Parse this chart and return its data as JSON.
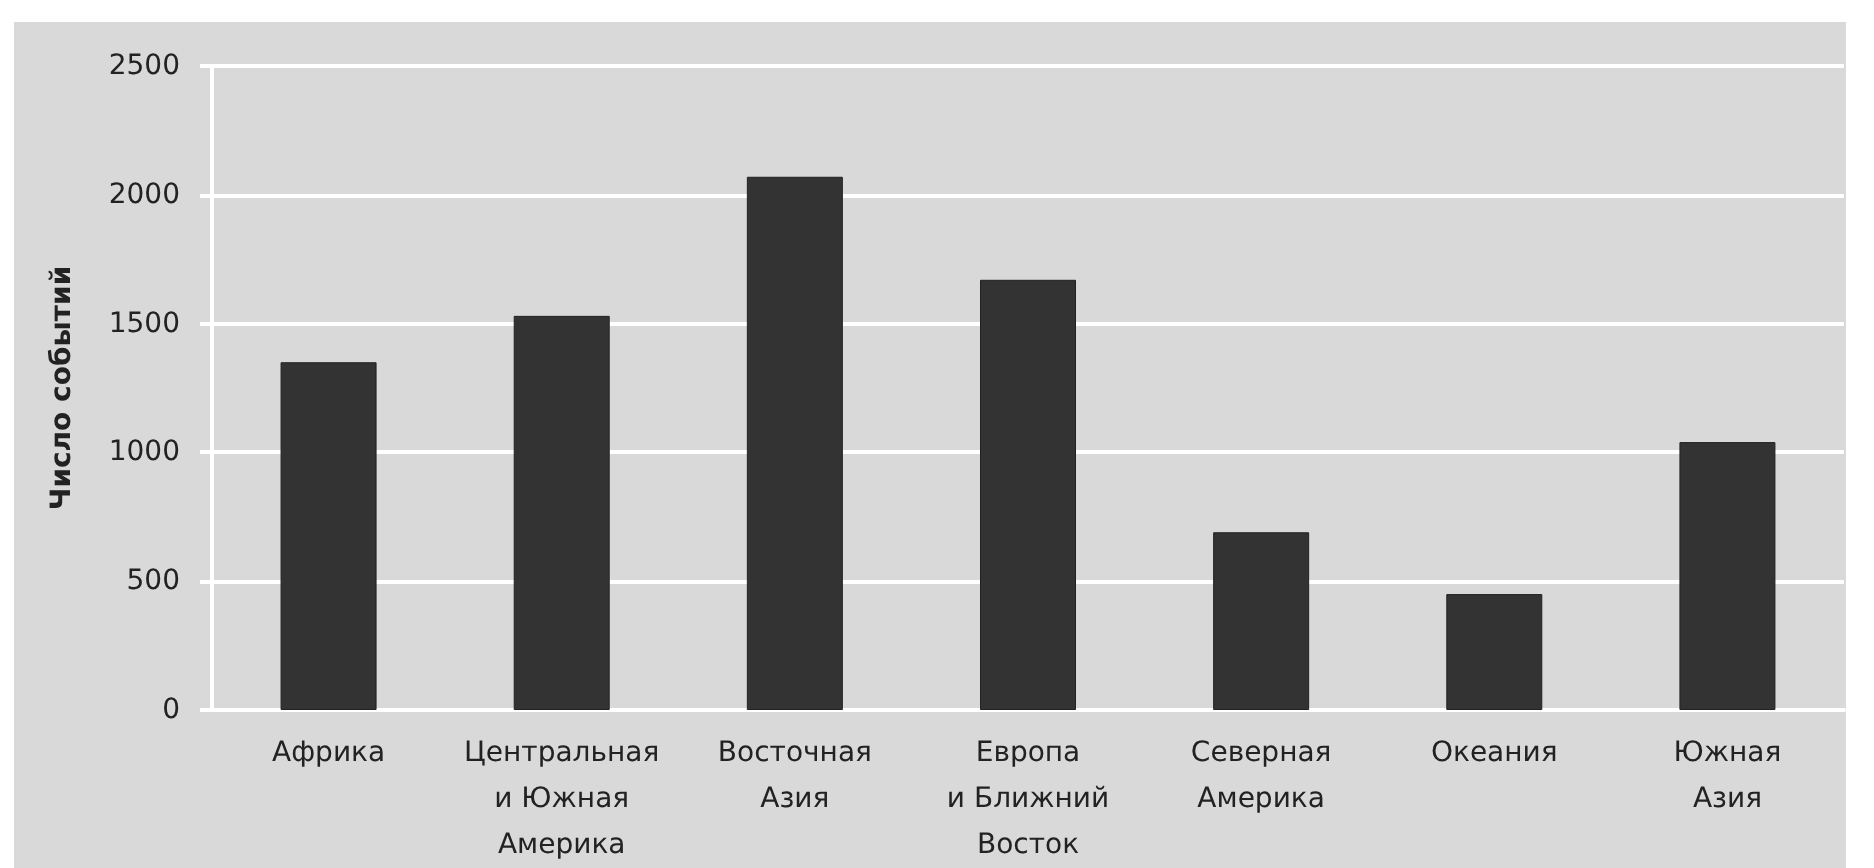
{
  "chart_data": {
    "type": "bar",
    "ylabel": "Число событий",
    "categories": [
      "Африка",
      "Центральная\nи Южная\nАмерика",
      "Восточная\nАзия",
      "Европа\nи Ближний\nВосток",
      "Северная\nАмерика",
      "Океания",
      "Южная\nАзия"
    ],
    "values": [
      1350,
      1530,
      2070,
      1670,
      690,
      450,
      1040
    ],
    "color": "#333333",
    "ylim": [
      0,
      2500
    ],
    "yticks": [
      0,
      500,
      1000,
      1500,
      2000,
      2500
    ],
    "grid": "y"
  }
}
